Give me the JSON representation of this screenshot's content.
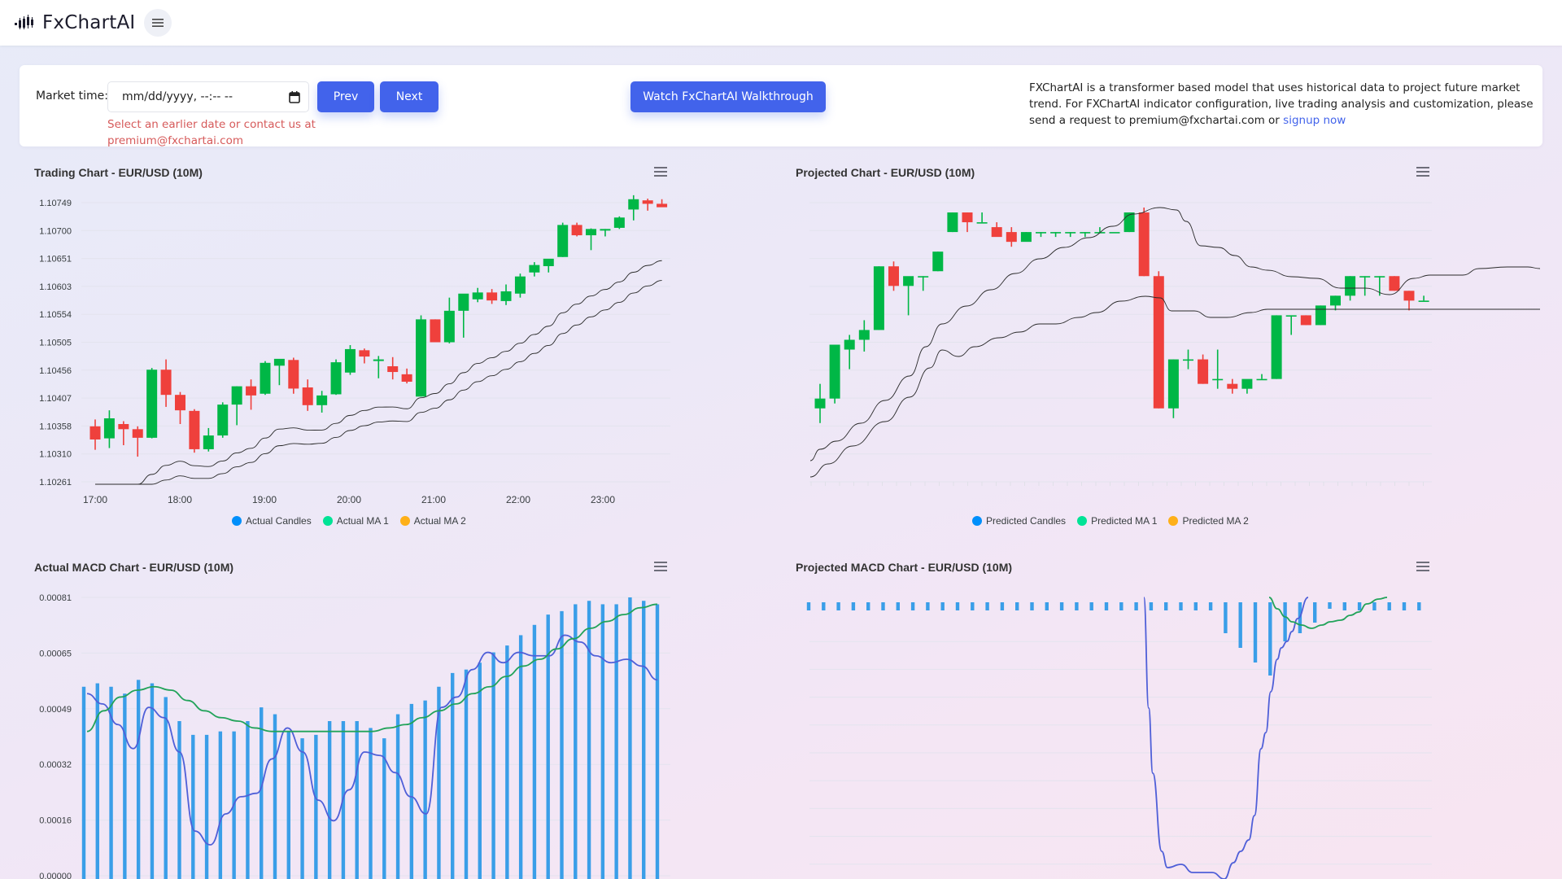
{
  "navbar": {
    "brand": "FxChartAI",
    "logo_icon": "candlestick-logo-icon",
    "menu_icon": "hamburger-menu-icon"
  },
  "controls": {
    "market_time_label": "Market time:",
    "market_time_placeholder": "mm/dd/yyyy, --:-- --",
    "market_time_value": "",
    "error_text": "Select an earlier date or contact us at premium@fxchartai.com",
    "prev_label": "Prev",
    "next_label": "Next",
    "walkthrough_label": "Watch FxChartAI Walkthrough",
    "info_text": "FXChartAI is a transformer based model that uses historical data to project future market trend. For FXChartAI indicator configuration, live trading analysis and customization, please send a request to premium@fxchartai.com or",
    "info_link": "signup now"
  },
  "colors": {
    "accent": "#4263eb",
    "bull": "#00b746",
    "bear": "#ef403c",
    "ma_line": "#222222",
    "macd_bar": "#3a9ee8",
    "macd_line": "#4f5fd8",
    "signal_line": "#22a35a",
    "legend_blue": "#008ffb",
    "legend_green": "#00e396",
    "legend_orange": "#feb019",
    "error": "#d65a5a"
  },
  "charts": {
    "trading": {
      "title": "Trading Chart - EUR/USD (10M)",
      "legend": [
        "Actual Candles",
        "Actual MA 1",
        "Actual MA 2"
      ]
    },
    "projected": {
      "title": "Projected Chart - EUR/USD (10M)",
      "legend": [
        "Predicted Candles",
        "Predicted MA 1",
        "Predicted MA 2"
      ]
    },
    "actual_macd": {
      "title": "Actual MACD Chart - EUR/USD (10M)"
    },
    "projected_macd": {
      "title": "Projected MACD Chart - EUR/USD (10M)"
    }
  },
  "chart_data": [
    {
      "type": "candlestick",
      "title": "Trading Chart - EUR/USD (10M)",
      "yticks": [
        "1.10749",
        "1.10700",
        "1.10651",
        "1.10603",
        "1.10554",
        "1.10505",
        "1.10456",
        "1.10407",
        "1.10358",
        "1.10310",
        "1.10261"
      ],
      "ylim": [
        1.10261,
        1.10749
      ],
      "xticks": [
        "17:00",
        "18:00",
        "19:00",
        "20:00",
        "21:00",
        "22:00",
        "23:00"
      ],
      "legend": [
        "Actual Candles",
        "Actual MA 1",
        "Actual MA 2"
      ],
      "candles": [
        {
          "o": 1.10358,
          "h": 1.1037,
          "l": 1.10317,
          "c": 1.10335
        },
        {
          "o": 1.10337,
          "h": 1.10386,
          "l": 1.1032,
          "c": 1.10372
        },
        {
          "o": 1.10362,
          "h": 1.10367,
          "l": 1.10325,
          "c": 1.10353
        },
        {
          "o": 1.10353,
          "h": 1.10358,
          "l": 1.10305,
          "c": 1.10338
        },
        {
          "o": 1.10338,
          "h": 1.1046,
          "l": 1.10337,
          "c": 1.10457
        },
        {
          "o": 1.10457,
          "h": 1.10475,
          "l": 1.10392,
          "c": 1.10413
        },
        {
          "o": 1.10413,
          "h": 1.10418,
          "l": 1.10362,
          "c": 1.10386
        },
        {
          "o": 1.10385,
          "h": 1.10388,
          "l": 1.10312,
          "c": 1.10318
        },
        {
          "o": 1.10318,
          "h": 1.10355,
          "l": 1.10314,
          "c": 1.10342
        },
        {
          "o": 1.10342,
          "h": 1.104,
          "l": 1.10338,
          "c": 1.10396
        },
        {
          "o": 1.10396,
          "h": 1.10428,
          "l": 1.1036,
          "c": 1.10428
        },
        {
          "o": 1.10428,
          "h": 1.1044,
          "l": 1.10387,
          "c": 1.10412
        },
        {
          "o": 1.10415,
          "h": 1.10472,
          "l": 1.10413,
          "c": 1.10469
        },
        {
          "o": 1.10464,
          "h": 1.10475,
          "l": 1.1043,
          "c": 1.10476
        },
        {
          "o": 1.10474,
          "h": 1.10478,
          "l": 1.10415,
          "c": 1.10424
        },
        {
          "o": 1.10426,
          "h": 1.1044,
          "l": 1.10385,
          "c": 1.10395
        },
        {
          "o": 1.10395,
          "h": 1.1042,
          "l": 1.10382,
          "c": 1.10412
        },
        {
          "o": 1.10414,
          "h": 1.10475,
          "l": 1.10413,
          "c": 1.1047
        },
        {
          "o": 1.10452,
          "h": 1.105,
          "l": 1.10448,
          "c": 1.10493
        },
        {
          "o": 1.10491,
          "h": 1.10494,
          "l": 1.10468,
          "c": 1.1048
        },
        {
          "o": 1.10475,
          "h": 1.10481,
          "l": 1.10442,
          "c": 1.10475
        },
        {
          "o": 1.10463,
          "h": 1.10479,
          "l": 1.1044,
          "c": 1.10453
        },
        {
          "o": 1.10449,
          "h": 1.10459,
          "l": 1.10433,
          "c": 1.10436
        },
        {
          "o": 1.1041,
          "h": 1.10552,
          "l": 1.1041,
          "c": 1.10545
        },
        {
          "o": 1.10545,
          "h": 1.10545,
          "l": 1.1052,
          "c": 1.10505
        },
        {
          "o": 1.10505,
          "h": 1.10583,
          "l": 1.10503,
          "c": 1.1056
        },
        {
          "o": 1.1056,
          "h": 1.10587,
          "l": 1.10513,
          "c": 1.1059
        },
        {
          "o": 1.1058,
          "h": 1.106,
          "l": 1.10575,
          "c": 1.10592
        },
        {
          "o": 1.10592,
          "h": 1.10598,
          "l": 1.10572,
          "c": 1.10578
        },
        {
          "o": 1.10577,
          "h": 1.10606,
          "l": 1.1057,
          "c": 1.10594
        },
        {
          "o": 1.1059,
          "h": 1.10625,
          "l": 1.10583,
          "c": 1.1062
        },
        {
          "o": 1.10627,
          "h": 1.10645,
          "l": 1.1062,
          "c": 1.1064
        },
        {
          "o": 1.10638,
          "h": 1.1065,
          "l": 1.10627,
          "c": 1.10651
        },
        {
          "o": 1.10654,
          "h": 1.10714,
          "l": 1.10654,
          "c": 1.1071
        },
        {
          "o": 1.1071,
          "h": 1.10714,
          "l": 1.1069,
          "c": 1.10692
        },
        {
          "o": 1.10692,
          "h": 1.10704,
          "l": 1.10666,
          "c": 1.10703
        },
        {
          "o": 1.10703,
          "h": 1.10703,
          "l": 1.1069,
          "c": 1.10703
        },
        {
          "o": 1.10705,
          "h": 1.10725,
          "l": 1.10703,
          "c": 1.10723
        },
        {
          "o": 1.10737,
          "h": 1.10762,
          "l": 1.10718,
          "c": 1.10755
        },
        {
          "o": 1.10753,
          "h": 1.10756,
          "l": 1.10735,
          "c": 1.10747
        },
        {
          "o": 1.10747,
          "h": 1.10755,
          "l": 1.10744,
          "c": 1.10741
        }
      ]
    },
    {
      "type": "candlestick",
      "title": "Projected Chart - EUR/USD (10M)",
      "legend": [
        "Predicted Candles",
        "Predicted MA 1",
        "Predicted MA 2"
      ],
      "yticks_visible": false,
      "candles_note": "rises from ~1.1043 to ~1.1075, plateau, sharp drop to ~1.1041, recovery to ~1.1060"
    },
    {
      "type": "bar+line",
      "title": "Actual MACD Chart - EUR/USD (10M)",
      "yticks": [
        "0.00081",
        "0.00065",
        "0.00049",
        "0.00032",
        "0.00016",
        "0.00000"
      ],
      "ylim": [
        0,
        0.00081
      ],
      "series": [
        {
          "name": "Histogram",
          "type": "bar",
          "values": [
            0.00055,
            0.00056,
            0.00055,
            0.00053,
            0.00057,
            0.00056,
            0.00052,
            0.00045,
            0.00041,
            0.00041,
            0.00042,
            0.00042,
            0.00045,
            0.00049,
            0.00047,
            0.00042,
            0.0004,
            0.00041,
            0.00045,
            0.00045,
            0.00045,
            0.00043,
            0.0004,
            0.00047,
            0.0005,
            0.00051,
            0.00055,
            0.00059,
            0.0006,
            0.00062,
            0.00065,
            0.00067,
            0.0007,
            0.00073,
            0.00076,
            0.00077,
            0.00079,
            0.0008,
            0.00079,
            0.00079,
            0.00081,
            0.0008,
            0.00079
          ]
        },
        {
          "name": "MACD",
          "type": "line",
          "values": [
            0.00053,
            0.0005,
            0.00044,
            0.00037,
            0.00049,
            0.00046,
            0.00036,
            0.00013,
            9e-05,
            0.00018,
            0.00023,
            0.00024,
            0.00034,
            0.00043,
            0.00036,
            0.00022,
            0.00016,
            0.00025,
            0.00036,
            0.00035,
            0.0003,
            0.00023,
            0.00018,
            0.00049,
            0.00052,
            0.0006,
            0.00065,
            0.00062,
            0.00065,
            0.00064,
            0.00064,
            0.0007,
            0.00068,
            0.00064,
            0.00062,
            0.00063,
            0.00061,
            0.00057
          ]
        },
        {
          "name": "Signal",
          "type": "line",
          "values": [
            0.00042,
            0.00048,
            0.00052,
            0.00054,
            0.00055,
            0.00054,
            0.00051,
            0.00048,
            0.00046,
            0.00045,
            0.00043,
            0.00042,
            0.00042,
            0.00042,
            0.00042,
            0.00042,
            0.00042,
            0.00042,
            0.00043,
            0.00044,
            0.00046,
            0.00048,
            0.0005,
            0.00053,
            0.00055,
            0.00058,
            0.00061,
            0.00063,
            0.00066,
            0.00069,
            0.00072,
            0.00074,
            0.00076,
            0.00078,
            0.00079
          ]
        }
      ]
    },
    {
      "type": "bar+line",
      "title": "Projected MACD Chart - EUR/USD (10M)",
      "yticks_visible": false,
      "note": "MACD plunges sharply near index 29 then recovers; histogram near zero then negative dip"
    }
  ]
}
